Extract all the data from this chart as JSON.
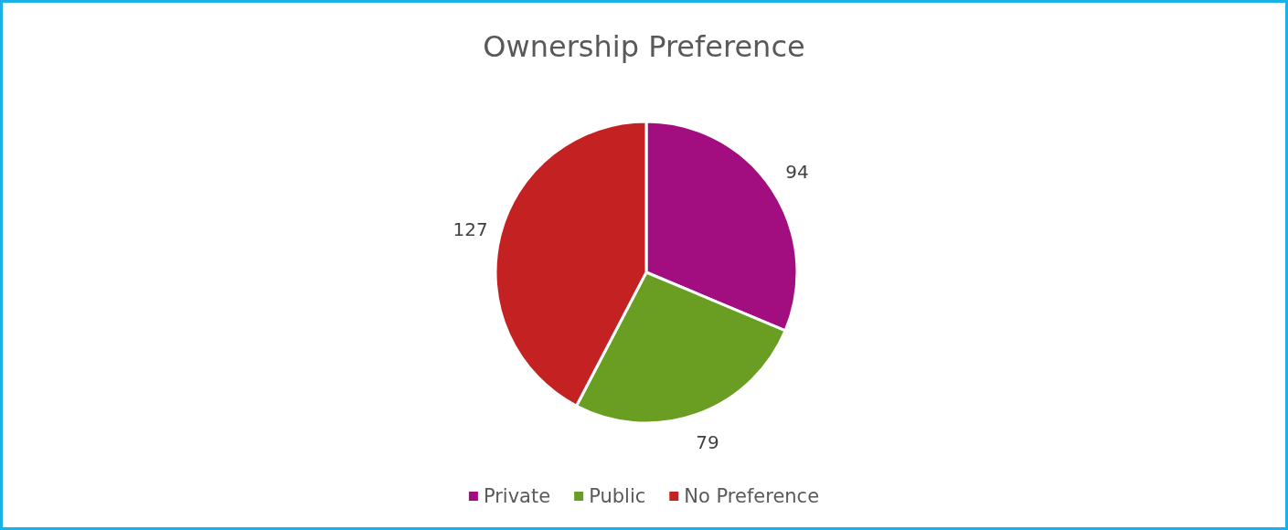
{
  "chart_data": {
    "type": "pie",
    "title": "Ownership Preference",
    "categories": [
      "Private",
      "Public",
      "No Preference"
    ],
    "values": [
      94,
      79,
      127
    ],
    "colors": [
      "#a20d80",
      "#6a9e22",
      "#c42222"
    ],
    "data_labels": true,
    "legend": "bottom"
  }
}
